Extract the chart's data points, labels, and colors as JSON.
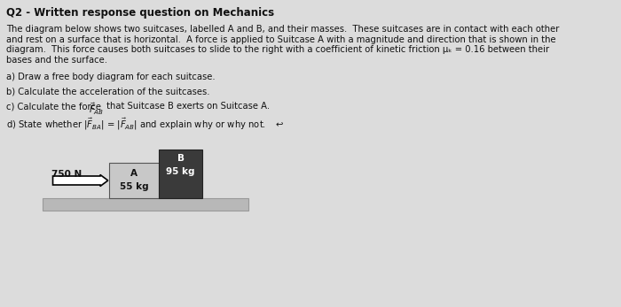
{
  "title": "Q2 - Written response question on Mechanics",
  "para_lines": [
    "The diagram below shows two suitcases, labelled A and B, and their masses.  These suitcases are in contact with each other",
    "and rest on a surface that is horizontal.  A force is applied to Suitcase A with a magnitude and direction that is shown in the",
    "diagram.  This force causes both suitcases to slide to the right with a coefficient of kinetic friction μₖ = 0.16 between their",
    "bases and the surface."
  ],
  "qa": "a) Draw a free body diagram for each suitcase.",
  "qb": "b) Calculate the acceleration of the suitcases.",
  "qc_pre": "c) Calculate the force ",
  "qc_sub": "AB",
  "qc_post": " that Suitcase B exerts on Suitcase A.",
  "qd": "d) State whether |F̅ᴮₐ| = |F̅ₐᴮ| and explain why or why not.",
  "force_label": "750 N",
  "suitcase_A_label": "A",
  "suitcase_A_mass": "55 kg",
  "suitcase_B_label": "B",
  "suitcase_B_mass": "95 kg",
  "bg_color": "#dcdcdc",
  "suitcase_A_facecolor": "#c8c8c8",
  "suitcase_A_edgecolor": "#555555",
  "suitcase_B_facecolor": "#3a3a3a",
  "suitcase_B_edgecolor": "#222222",
  "surface_facecolor": "#b8b8b8",
  "surface_edgecolor": "#999999",
  "text_color": "#111111",
  "title_fontsize": 8.5,
  "body_fontsize": 7.2,
  "diagram_label_fontsize": 7.5
}
